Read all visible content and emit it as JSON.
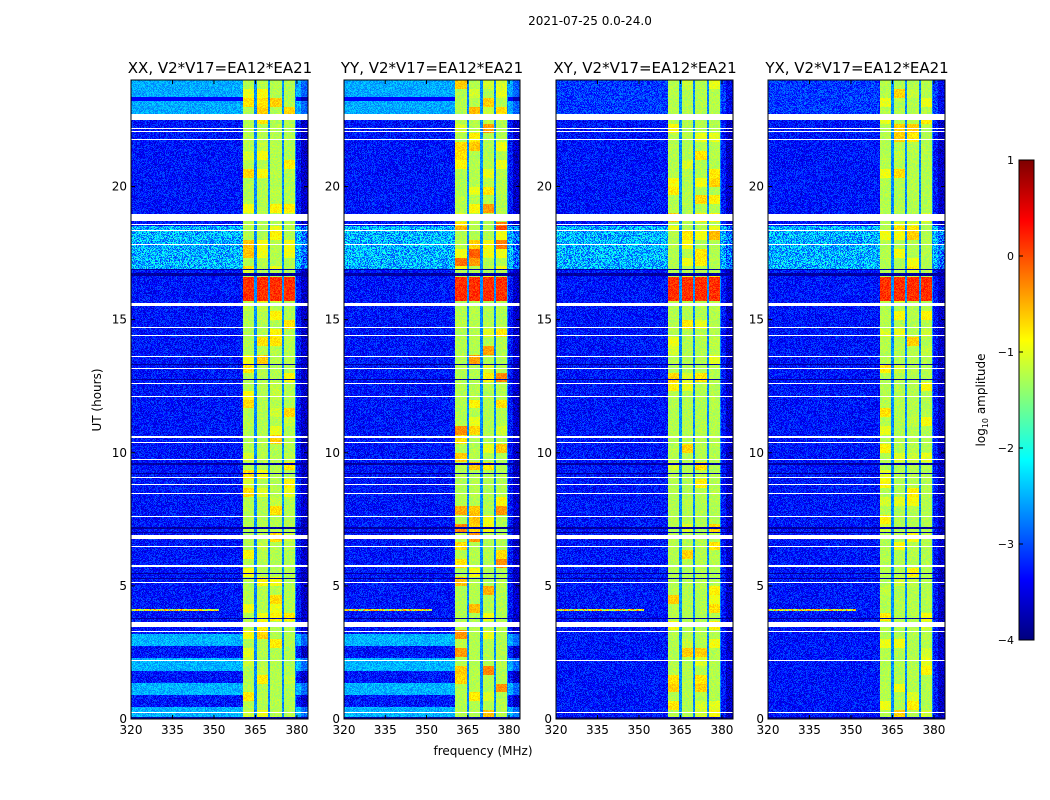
{
  "chart_data": {
    "type": "heatmap",
    "title": "2021-07-25 0.0-24.0",
    "xlabel": "frequency (MHz)",
    "ylabel": "UT (hours)",
    "xlim": [
      320,
      384
    ],
    "ylim": [
      0,
      24
    ],
    "xticks": [
      320,
      335,
      350,
      365,
      380
    ],
    "yticks": [
      0,
      5,
      10,
      15,
      20
    ],
    "panels": [
      {
        "title": "XX, V2*V17=EA12*EA21",
        "pol": "XX"
      },
      {
        "title": "YY, V2*V17=EA12*EA21",
        "pol": "YY"
      },
      {
        "title": "XY, V2*V17=EA12*EA21",
        "pol": "XY"
      },
      {
        "title": "YX, V2*V17=EA12*EA21",
        "pol": "YX"
      }
    ],
    "colorbar": {
      "label_main": "log",
      "label_sub": "10",
      "label_rest": " amplitude",
      "range": [
        -4,
        1
      ],
      "ticks": [
        "1",
        "0",
        "−1",
        "−2",
        "−3",
        "−4"
      ],
      "tick_values": [
        1,
        0,
        -1,
        -2,
        -3,
        -4
      ],
      "colormap": "jet"
    },
    "rfi_band_mhz": [
      360.5,
      379.6
    ],
    "channel_gaps_mhz": [
      365,
      370,
      375,
      379.8
    ],
    "flagged_hours": [
      [
        22.5,
        22.72
      ],
      [
        22.15,
        22.2
      ],
      [
        22.05,
        22.08
      ],
      [
        21.73,
        21.77
      ],
      [
        18.7,
        18.95
      ],
      [
        18.55,
        18.58
      ],
      [
        18.33,
        18.38
      ],
      [
        17.8,
        17.83
      ],
      [
        15.5,
        15.62
      ],
      [
        14.68,
        14.72
      ],
      [
        14.38,
        14.42
      ],
      [
        13.58,
        13.62
      ],
      [
        13.43,
        13.46
      ],
      [
        13.15,
        13.18
      ],
      [
        12.6,
        12.63
      ],
      [
        12.08,
        12.12
      ],
      [
        10.57,
        10.62
      ],
      [
        10.38,
        10.42
      ],
      [
        9.72,
        9.77
      ],
      [
        9.06,
        9.09
      ],
      [
        8.78,
        8.81
      ],
      [
        8.44,
        8.47
      ],
      [
        7.58,
        7.61
      ],
      [
        6.75,
        6.9
      ],
      [
        6.45,
        6.48
      ],
      [
        5.72,
        5.8
      ],
      [
        5.1,
        5.13
      ],
      [
        3.45,
        3.65
      ],
      [
        3.28,
        3.31
      ],
      [
        2.18,
        2.21
      ],
      [
        0.22,
        0.27
      ]
    ],
    "dark_hours": [
      [
        16.65,
        16.75
      ],
      [
        16.88,
        16.92
      ],
      [
        13.3,
        13.34
      ],
      [
        12.75,
        12.78
      ],
      [
        9.55,
        9.62
      ],
      [
        9.2,
        9.24
      ],
      [
        7.15,
        7.2
      ],
      [
        7.0,
        7.04
      ],
      [
        5.45,
        5.5
      ],
      [
        5.25,
        5.28
      ],
      [
        3.75,
        3.8
      ],
      [
        0.0,
        0.08
      ]
    ],
    "strong_rfi_hours": [
      15.7,
      16.6
    ]
  }
}
